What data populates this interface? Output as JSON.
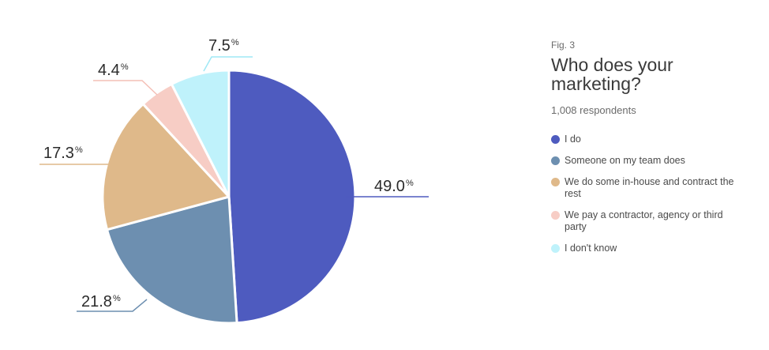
{
  "figure_label": "Fig. 3",
  "respondents": "1,008 respondents",
  "chart_data": {
    "type": "pie",
    "title": "Who does your marketing?",
    "unit": "%",
    "slices": [
      {
        "label": "I do",
        "value": 49.0,
        "display": "49.0",
        "color": "#4e5bbf",
        "leader_color": "#4e5bbf"
      },
      {
        "label": "Someone on my team does",
        "value": 21.8,
        "display": "21.8",
        "color": "#6d8fb0",
        "leader_color": "#6d8fb0"
      },
      {
        "label": "We do some in-house and contract the rest",
        "value": 17.3,
        "display": "17.3",
        "color": "#dfb98a",
        "leader_color": "#dfb98a"
      },
      {
        "label": "We pay a contractor, agency or third party",
        "value": 4.4,
        "display": "4.4",
        "color": "#f7cdc5",
        "leader_color": "#f4bfb6"
      },
      {
        "label": "I don't know",
        "value": 7.5,
        "display": "7.5",
        "color": "#bff2fb",
        "leader_color": "#9fe8f5"
      }
    ],
    "legend_position": "right"
  }
}
